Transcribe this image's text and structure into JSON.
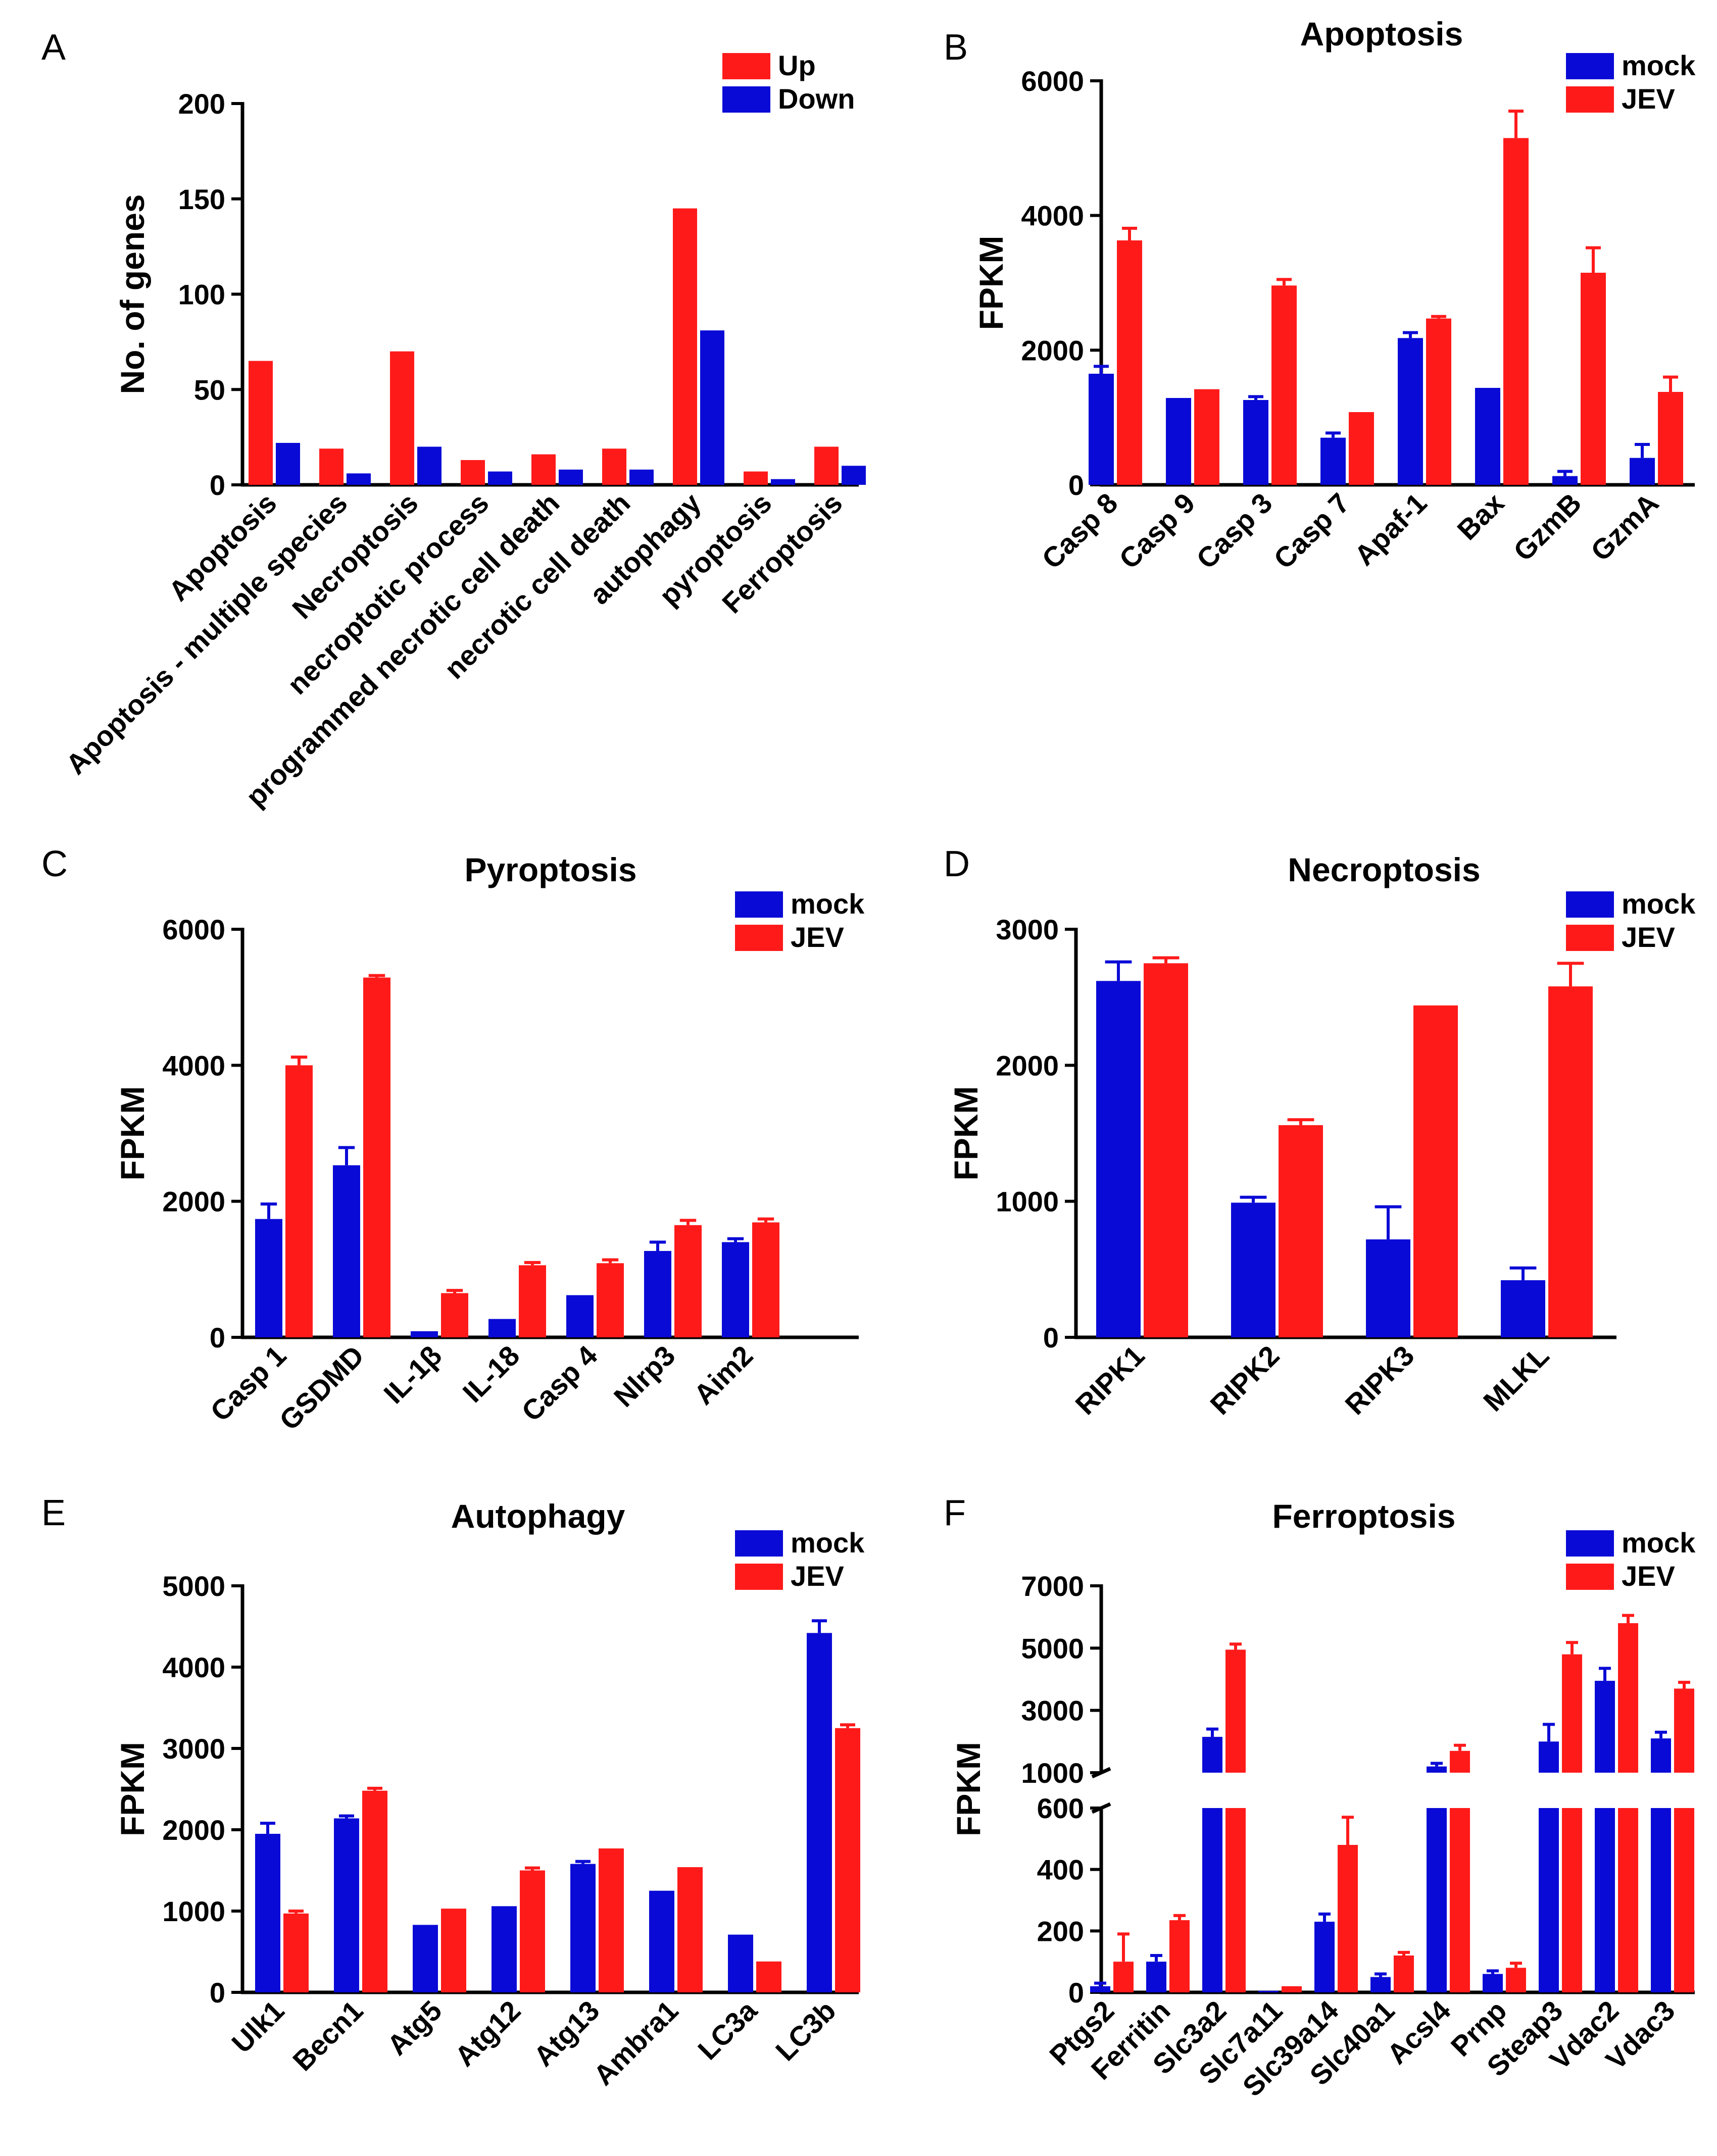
{
  "colors": {
    "red": "#ff1a1a",
    "blue": "#0a0ad6",
    "axis": "#000000"
  },
  "chart_data": [
    {
      "panel": "A",
      "type": "bar",
      "title": "",
      "ylabel": "No. of genes",
      "xlabel": "",
      "ylim": [
        0,
        200
      ],
      "yticks": [
        0,
        50,
        100,
        150,
        200
      ],
      "legend": "top-right",
      "categories": [
        "Apoptosis",
        "Apoptosis - multiple species",
        "Necroptosis",
        "necroptotic process",
        "programmed necrotic cell death",
        "necrotic cell death",
        "autophagy",
        "pyroptosis",
        "Ferroptosis"
      ],
      "series": [
        {
          "name": "Up",
          "color": "#ff1a1a",
          "values": [
            65,
            19,
            70,
            13,
            16,
            19,
            145,
            7,
            20
          ],
          "errors": [
            0,
            0,
            0,
            0,
            0,
            0,
            0,
            0,
            0
          ]
        },
        {
          "name": "Down",
          "color": "#0a0ad6",
          "values": [
            22,
            6,
            20,
            7,
            8,
            8,
            81,
            3,
            10
          ],
          "errors": [
            0,
            0,
            0,
            0,
            0,
            0,
            0,
            0,
            0
          ]
        }
      ]
    },
    {
      "panel": "B",
      "type": "bar",
      "title": "Apoptosis",
      "ylabel": "FPKM",
      "xlabel": "",
      "ylim": [
        0,
        6000
      ],
      "yticks": [
        0,
        2000,
        4000,
        6000
      ],
      "legend": "top-right",
      "categories": [
        "Casp 8",
        "Casp 9",
        "Casp 3",
        "Casp 7",
        "Apaf-1",
        "Bax",
        "GzmB",
        "GzmA"
      ],
      "series": [
        {
          "name": "mock",
          "color": "#0a0ad6",
          "values": [
            1650,
            1290,
            1260,
            700,
            2180,
            1440,
            130,
            400
          ],
          "errors": [
            110,
            0,
            50,
            70,
            80,
            0,
            70,
            200
          ]
        },
        {
          "name": "JEV",
          "color": "#ff1a1a",
          "values": [
            3630,
            1420,
            2960,
            1080,
            2470,
            5150,
            3150,
            1380
          ],
          "errors": [
            180,
            0,
            90,
            0,
            30,
            400,
            370,
            220
          ]
        }
      ]
    },
    {
      "panel": "C",
      "type": "bar",
      "title": "Pyroptosis",
      "ylabel": "FPKM",
      "xlabel": "",
      "ylim": [
        0,
        6000
      ],
      "yticks": [
        0,
        2000,
        4000,
        6000
      ],
      "legend": "top-right",
      "categories": [
        "Casp 1",
        "GSDMD",
        "IL-1β",
        "IL-18",
        "Casp 4",
        "Nlrp3",
        "Aim2"
      ],
      "series": [
        {
          "name": "mock",
          "color": "#0a0ad6",
          "values": [
            1740,
            2530,
            90,
            270,
            620,
            1270,
            1400
          ],
          "errors": [
            220,
            260,
            0,
            0,
            0,
            130,
            50
          ]
        },
        {
          "name": "JEV",
          "color": "#ff1a1a",
          "values": [
            4000,
            5290,
            650,
            1060,
            1090,
            1650,
            1690
          ],
          "errors": [
            120,
            30,
            40,
            40,
            50,
            70,
            50
          ]
        }
      ]
    },
    {
      "panel": "D",
      "type": "bar",
      "title": "Necroptosis",
      "ylabel": "FPKM",
      "xlabel": "",
      "ylim": [
        0,
        3000
      ],
      "yticks": [
        0,
        1000,
        2000,
        3000
      ],
      "legend": "top-right",
      "categories": [
        "RIPK1",
        "RIPK2",
        "RIPK3",
        "MLKL"
      ],
      "series": [
        {
          "name": "mock",
          "color": "#0a0ad6",
          "values": [
            2620,
            990,
            720,
            420
          ],
          "errors": [
            140,
            40,
            240,
            90
          ]
        },
        {
          "name": "JEV",
          "color": "#ff1a1a",
          "values": [
            2750,
            1560,
            2440,
            2580
          ],
          "errors": [
            40,
            40,
            0,
            170
          ]
        }
      ]
    },
    {
      "panel": "E",
      "type": "bar",
      "title": "Autophagy",
      "ylabel": "FPKM",
      "xlabel": "",
      "ylim": [
        0,
        5000
      ],
      "yticks": [
        0,
        1000,
        2000,
        3000,
        4000,
        5000
      ],
      "legend": "top-right",
      "categories": [
        "Ulk1",
        "Becn1",
        "Atg5",
        "Atg12",
        "Atg13",
        "Ambra1",
        "LC3a",
        "LC3b"
      ],
      "series": [
        {
          "name": "mock",
          "color": "#0a0ad6",
          "values": [
            1950,
            2140,
            830,
            1060,
            1580,
            1250,
            710,
            4420
          ],
          "errors": [
            130,
            30,
            0,
            0,
            30,
            0,
            0,
            150
          ]
        },
        {
          "name": "JEV",
          "color": "#ff1a1a",
          "values": [
            970,
            2480,
            1030,
            1500,
            1770,
            1540,
            380,
            3250
          ],
          "errors": [
            30,
            30,
            0,
            30,
            0,
            0,
            0,
            40
          ]
        }
      ]
    },
    {
      "panel": "F",
      "type": "bar",
      "title": "Ferroptosis",
      "ylabel": "FPKM",
      "xlabel": "",
      "broken_axis": true,
      "ylim_lower": [
        0,
        600
      ],
      "yticks_lower": [
        0,
        200,
        400,
        600
      ],
      "ylim_upper": [
        1000,
        7000
      ],
      "yticks_upper": [
        1000,
        3000,
        5000,
        7000
      ],
      "legend": "top-right",
      "categories": [
        "Ptgs2",
        "Ferritin",
        "Slc3a2",
        "Slc7a11",
        "Slc39a14",
        "Slc40a1",
        "Acsl4",
        "Prnp",
        "Steap3",
        "Vdac2",
        "Vdac3"
      ],
      "series": [
        {
          "name": "mock",
          "color": "#0a0ad6",
          "values": [
            20,
            100,
            2150,
            5,
            230,
            50,
            1200,
            60,
            2000,
            3950,
            2100
          ],
          "errors": [
            10,
            20,
            250,
            0,
            25,
            10,
            100,
            10,
            550,
            400,
            200
          ]
        },
        {
          "name": "JEV",
          "color": "#ff1a1a",
          "values": [
            100,
            235,
            4950,
            20,
            480,
            120,
            1700,
            80,
            4800,
            5800,
            3700
          ],
          "errors": [
            90,
            15,
            180,
            0,
            90,
            10,
            180,
            15,
            380,
            250,
            200
          ]
        }
      ]
    }
  ]
}
